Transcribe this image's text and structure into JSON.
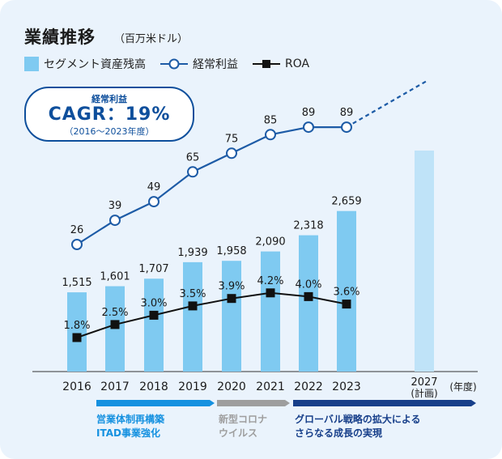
{
  "header": {
    "title": "業績推移",
    "unit": "（百万米ドル）"
  },
  "legend": {
    "bars": "セグメント資産残高",
    "line1": "経常利益",
    "line2": "ROA"
  },
  "cagr_box": {
    "label": "経常利益",
    "value": "CAGR：19%",
    "period": "（2016〜2023年度）"
  },
  "x_axis": {
    "plan_label_top": "2027",
    "plan_label_bottom": "(計画)",
    "unit": "(年度)"
  },
  "phases": [
    {
      "line1": "営業体制再構築",
      "line2": "ITAD事業強化",
      "color": "#1591e0"
    },
    {
      "line1": "新型コロナ",
      "line2": "ウイルス",
      "color": "#9e9e9e"
    },
    {
      "line1": "グローバル戦略の拡大による",
      "line2": "さらなる成長の実現",
      "color": "#173f8a"
    }
  ],
  "colors": {
    "bar": "#7fcaf1",
    "bar_plan": "#bfe3f8",
    "ordinary_profit_line": "#1d5ba6",
    "roa_line": "#111111",
    "background": "#eaf3fc"
  },
  "chart_data": {
    "type": "bar",
    "categories": [
      "2016",
      "2017",
      "2018",
      "2019",
      "2020",
      "2021",
      "2022",
      "2023"
    ],
    "series": [
      {
        "name": "セグメント資産残高",
        "type": "bar",
        "values": [
          1515,
          1601,
          1707,
          1939,
          1958,
          2090,
          2318,
          2659
        ],
        "labels": [
          "1,515",
          "1,601",
          "1,707",
          "1,939",
          "1,958",
          "2,090",
          "2,318",
          "2,659"
        ]
      },
      {
        "name": "経常利益",
        "type": "line",
        "marker": "circle",
        "values": [
          26,
          39,
          49,
          65,
          75,
          85,
          89,
          89
        ],
        "labels": [
          "26",
          "39",
          "49",
          "65",
          "75",
          "85",
          "89",
          "89"
        ]
      },
      {
        "name": "ROA",
        "type": "line",
        "marker": "square",
        "unit": "%",
        "values": [
          1.8,
          2.5,
          3.0,
          3.5,
          3.9,
          4.2,
          4.0,
          3.6
        ],
        "labels": [
          "1.8%",
          "2.5%",
          "3.0%",
          "3.5%",
          "3.9%",
          "4.2%",
          "4.0%",
          "3.6%"
        ]
      }
    ],
    "plan": {
      "category": "2027",
      "bar_shown": true,
      "profit_trend": "dashed rising"
    },
    "grid": false
  }
}
